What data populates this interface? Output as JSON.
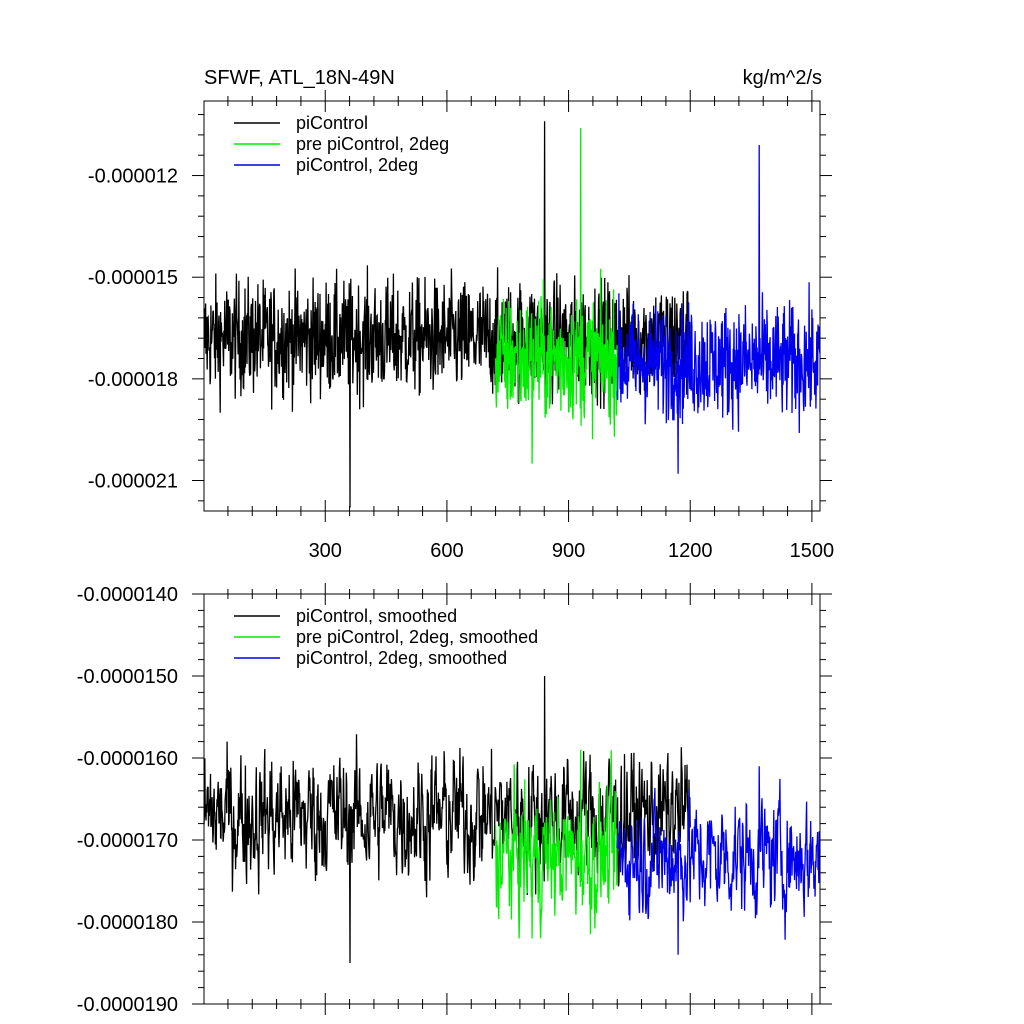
{
  "chart_data": [
    {
      "type": "line",
      "title": "SFWF, ATL_18N-49N",
      "units": "kg/m^2/s",
      "xlim": [
        1,
        1520
      ],
      "ylim": [
        -2.19e-05,
        -9.8e-06
      ],
      "xticks": [
        300,
        600,
        900,
        1200,
        1500
      ],
      "xtick_labels": [
        "300",
        "600",
        "900",
        "1200",
        "1500"
      ],
      "yticks": [
        -1.2e-05,
        -1.5e-05,
        -1.8e-05,
        -2.1e-05
      ],
      "ytick_labels": [
        "-0.000012",
        "-0.000015",
        "-0.000018",
        "-0.000021"
      ],
      "legend_location": "top-left",
      "series": [
        {
          "name": "piControl",
          "color": "#000000",
          "x_start": 1,
          "x_end": 1200,
          "mean": -1.68e-05,
          "amplitude": 1.2e-06,
          "peak_max": -1.04e-05,
          "peak_min": -2.18e-05,
          "smooth": false
        },
        {
          "name": "pre piControl, 2deg",
          "color": "#00ee00",
          "x_start": 720,
          "x_end": 1020,
          "mean": -1.74e-05,
          "amplitude": 1.3e-06,
          "peak_max": -1.06e-05,
          "peak_min": -2.05e-05,
          "smooth": false
        },
        {
          "name": "piControl, 2deg",
          "color": "#0000ee",
          "x_start": 1020,
          "x_end": 1520,
          "mean": -1.75e-05,
          "amplitude": 1.2e-06,
          "peak_max": -1.11e-05,
          "peak_min": -2.08e-05,
          "smooth": false
        }
      ]
    },
    {
      "type": "line",
      "title": "",
      "units": "",
      "xlim": [
        1,
        1520
      ],
      "ylim": [
        -1.9e-05,
        -1.4e-05
      ],
      "xticks": [
        300,
        600,
        900,
        1200,
        1500
      ],
      "xtick_labels": [],
      "yticks": [
        -1.4e-05,
        -1.5e-05,
        -1.6e-05,
        -1.7e-05,
        -1.8e-05,
        -1.9e-05
      ],
      "ytick_labels": [
        "-0.0000140",
        "-0.0000150",
        "-0.0000160",
        "-0.0000170",
        "-0.0000180",
        "-0.0000190"
      ],
      "legend_location": "top-left",
      "series": [
        {
          "name": "piControl, smoothed",
          "color": "#000000",
          "x_start": 1,
          "x_end": 1200,
          "mean": -1.67e-05,
          "amplitude": 5e-07,
          "peak_max": -1.5e-05,
          "peak_min": -1.85e-05,
          "smooth": true
        },
        {
          "name": "pre piControl, 2deg, smoothed",
          "color": "#00ee00",
          "x_start": 720,
          "x_end": 1020,
          "mean": -1.72e-05,
          "amplitude": 5e-07,
          "peak_max": -1.59e-05,
          "peak_min": -1.82e-05,
          "smooth": true
        },
        {
          "name": "piControl, 2deg, smoothed",
          "color": "#0000ee",
          "x_start": 1020,
          "x_end": 1520,
          "mean": -1.72e-05,
          "amplitude": 4.5e-07,
          "peak_max": -1.61e-05,
          "peak_min": -1.84e-05,
          "smooth": true
        }
      ]
    }
  ]
}
